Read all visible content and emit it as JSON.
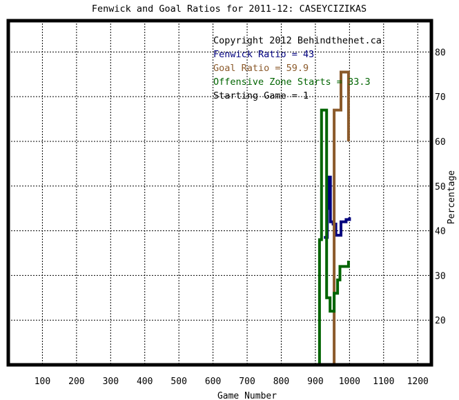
{
  "chart_data": {
    "type": "line",
    "title": "Fenwick and Goal Ratios for 2011-12: CASEYCIZIKAS",
    "xlabel": "Game Number",
    "ylabel": "Percentage",
    "xlim": [
      0,
      1240
    ],
    "ylim": [
      10,
      87
    ],
    "x_ticks": [
      100,
      200,
      300,
      400,
      500,
      600,
      700,
      800,
      900,
      1000,
      1100,
      1200
    ],
    "y_ticks": [
      20,
      30,
      40,
      50,
      60,
      70,
      80
    ],
    "grid": true,
    "legend_position": "top-right",
    "annotations": [
      {
        "text": "Copyright 2012 Behindthenet.ca",
        "color": "#000000"
      },
      {
        "text": "Fenwick Ratio = 43",
        "color": "#00007f"
      },
      {
        "text": "Goal Ratio = 59.9",
        "color": "#8b5a2b"
      },
      {
        "text": "Offensive Zone Starts = 33.3",
        "color": "#006400"
      },
      {
        "text": "Starting Game = 1",
        "color": "#000000"
      }
    ],
    "series": [
      {
        "color": "#00007f",
        "points": [
          [
            925,
            38.5
          ],
          [
            935,
            38.5
          ],
          [
            935,
            45
          ],
          [
            940,
            45
          ],
          [
            940,
            52
          ],
          [
            944,
            52
          ],
          [
            944,
            42
          ],
          [
            952,
            42
          ],
          [
            952,
            41.5
          ],
          [
            960,
            41.5
          ],
          [
            960,
            39
          ],
          [
            975,
            39
          ],
          [
            975,
            42
          ],
          [
            990,
            42
          ],
          [
            990,
            42.5
          ],
          [
            1000,
            42.5
          ],
          [
            1000,
            43
          ]
        ]
      },
      {
        "color": "#8b5a2b",
        "points": [
          [
            955,
            10
          ],
          [
            955,
            67
          ],
          [
            975,
            67
          ],
          [
            975,
            75.5
          ],
          [
            997,
            75.5
          ],
          [
            997,
            68
          ],
          [
            997,
            60
          ]
        ]
      },
      {
        "color": "#006400",
        "points": [
          [
            912,
            10
          ],
          [
            912,
            38
          ],
          [
            918,
            38
          ],
          [
            918,
            67
          ],
          [
            933,
            67
          ],
          [
            933,
            25
          ],
          [
            943,
            25
          ],
          [
            943,
            22
          ],
          [
            955,
            22
          ],
          [
            955,
            26
          ],
          [
            965,
            26
          ],
          [
            965,
            29
          ],
          [
            972,
            29
          ],
          [
            972,
            32
          ],
          [
            997,
            32
          ],
          [
            997,
            33.3
          ]
        ]
      }
    ]
  }
}
